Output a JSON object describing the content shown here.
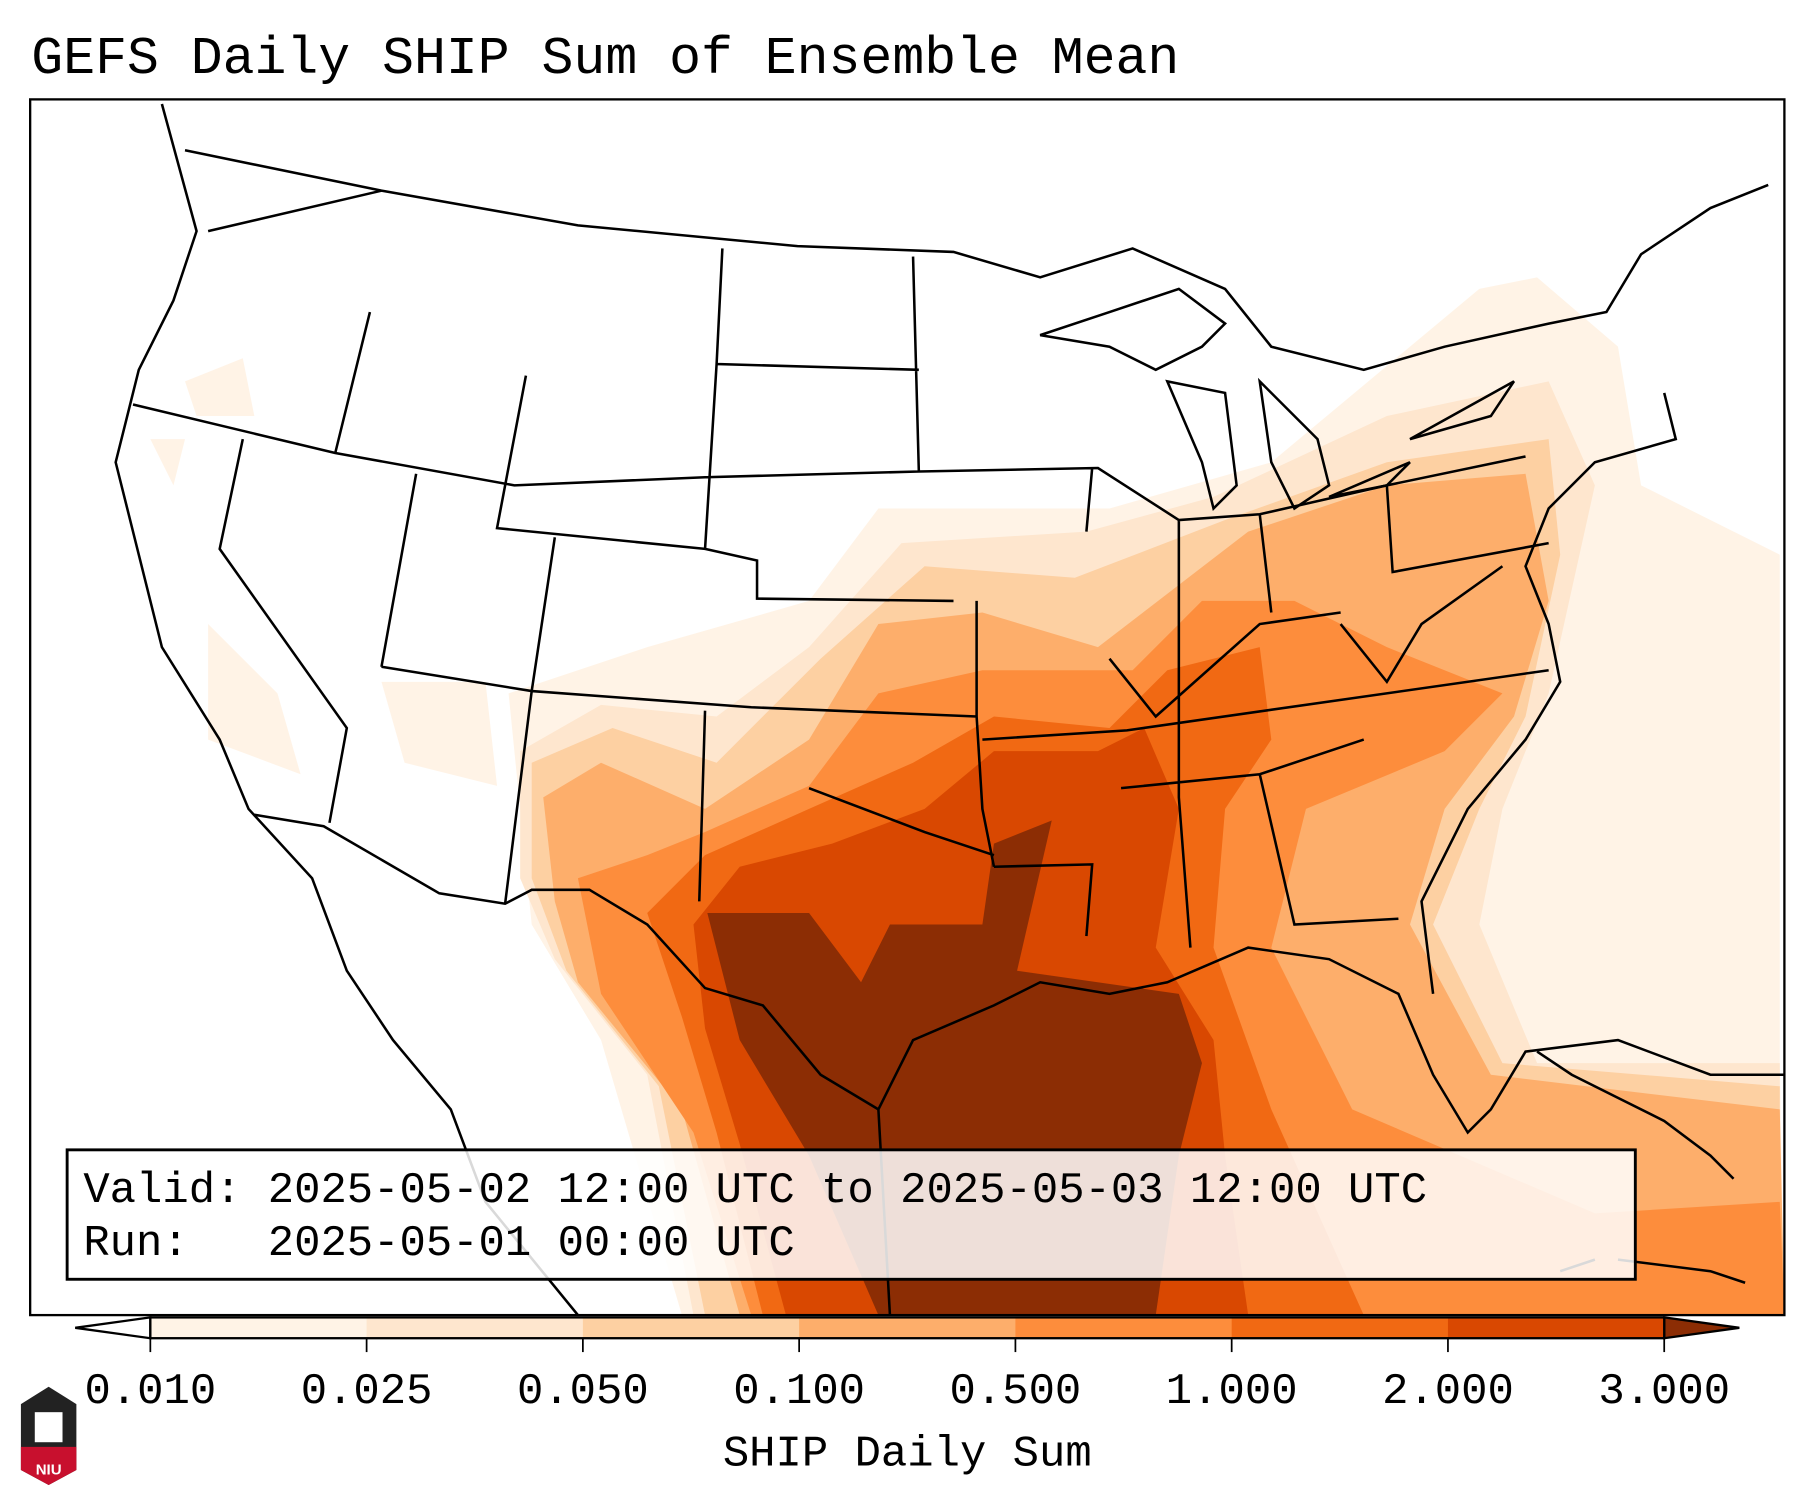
{
  "title": "GEFS Daily SHIP Sum of Ensemble Mean",
  "info": {
    "valid_line": "Valid: 2025-05-02 12:00 UTC to 2025-05-03 12:00 UTC",
    "run_line": "Run:   2025-05-01 00:00 UTC"
  },
  "colorbar": {
    "label": "SHIP Daily Sum",
    "ticks": [
      "0.010",
      "0.025",
      "0.050",
      "0.100",
      "0.500",
      "1.000",
      "2.000",
      "3.000"
    ],
    "colors": [
      "#fff3e6",
      "#fee6ce",
      "#fdd0a2",
      "#fdae6b",
      "#fd8d3c",
      "#f16913",
      "#d94801",
      "#8c2d04"
    ],
    "under_color": "#ffffff",
    "over_color": "#8c2d04"
  },
  "logo": {
    "text": "NIU"
  }
}
